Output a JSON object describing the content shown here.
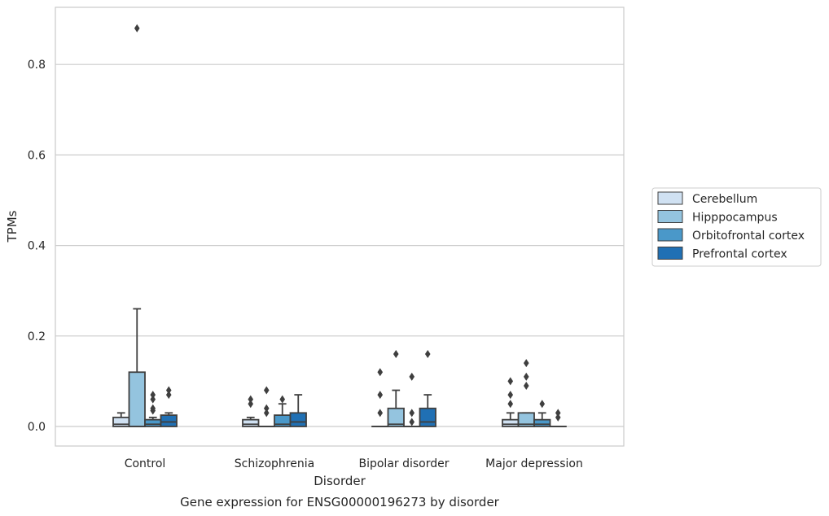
{
  "chart_data": {
    "type": "boxplot",
    "title": "",
    "caption": "Gene expression for ENSG00000196273 by disorder",
    "xlabel": "Disorder",
    "ylabel": "TPMs",
    "ylim": [
      -0.042,
      0.93
    ],
    "yticks": [
      0.0,
      0.2,
      0.4,
      0.6,
      0.8
    ],
    "ytick_labels": [
      "0.0",
      "0.2",
      "0.4",
      "0.6",
      "0.8"
    ],
    "categories": [
      "Control",
      "Schizophrenia",
      "Bipolar disorder",
      "Major depression"
    ],
    "grid": "horizontal",
    "legend_position": "right",
    "series": [
      {
        "name": "Cerebellum",
        "color": "#d0e1f2",
        "boxes": [
          {
            "q1": 0.0,
            "median": 0.005,
            "q3": 0.02,
            "whislo": 0.0,
            "whishi": 0.03,
            "fliers": []
          },
          {
            "q1": 0.0,
            "median": 0.005,
            "q3": 0.015,
            "whislo": 0.0,
            "whishi": 0.02,
            "fliers": [
              0.05,
              0.06
            ]
          },
          {
            "q1": 0.0,
            "median": 0.0,
            "q3": 0.0,
            "whislo": 0.0,
            "whishi": 0.0,
            "fliers": [
              0.03,
              0.07,
              0.12
            ]
          },
          {
            "q1": 0.0,
            "median": 0.005,
            "q3": 0.015,
            "whislo": 0.0,
            "whishi": 0.03,
            "fliers": [
              0.05,
              0.07,
              0.1
            ]
          }
        ]
      },
      {
        "name": "Hipppocampus",
        "color": "#94c4df",
        "boxes": [
          {
            "q1": 0.0,
            "median": 0.0,
            "q3": 0.12,
            "whislo": 0.0,
            "whishi": 0.26,
            "fliers": [
              0.88
            ]
          },
          {
            "q1": 0.0,
            "median": 0.0,
            "q3": 0.0,
            "whislo": 0.0,
            "whishi": 0.0,
            "fliers": [
              0.03,
              0.04,
              0.08
            ]
          },
          {
            "q1": 0.0,
            "median": 0.005,
            "q3": 0.04,
            "whislo": 0.0,
            "whishi": 0.08,
            "fliers": [
              0.16
            ]
          },
          {
            "q1": 0.0,
            "median": 0.005,
            "q3": 0.03,
            "whislo": 0.0,
            "whishi": 0.03,
            "fliers": [
              0.09,
              0.11,
              0.14
            ]
          }
        ]
      },
      {
        "name": "Orbitofrontal cortex",
        "color": "#4a98c9",
        "boxes": [
          {
            "q1": 0.0,
            "median": 0.005,
            "q3": 0.015,
            "whislo": 0.0,
            "whishi": 0.02,
            "fliers": [
              0.035,
              0.04,
              0.06,
              0.07
            ]
          },
          {
            "q1": 0.0,
            "median": 0.005,
            "q3": 0.025,
            "whislo": 0.0,
            "whishi": 0.05,
            "fliers": [
              0.06
            ]
          },
          {
            "q1": 0.0,
            "median": 0.0,
            "q3": 0.0,
            "whislo": 0.0,
            "whishi": 0.0,
            "fliers": [
              0.01,
              0.03,
              0.11
            ]
          },
          {
            "q1": 0.0,
            "median": 0.005,
            "q3": 0.015,
            "whislo": 0.0,
            "whishi": 0.03,
            "fliers": [
              0.05
            ]
          }
        ]
      },
      {
        "name": "Prefrontal cortex",
        "color": "#2070b4",
        "boxes": [
          {
            "q1": 0.0,
            "median": 0.01,
            "q3": 0.025,
            "whislo": 0.0,
            "whishi": 0.03,
            "fliers": [
              0.07,
              0.08
            ]
          },
          {
            "q1": 0.0,
            "median": 0.01,
            "q3": 0.03,
            "whislo": 0.0,
            "whishi": 0.07,
            "fliers": []
          },
          {
            "q1": 0.0,
            "median": 0.01,
            "q3": 0.04,
            "whislo": 0.0,
            "whishi": 0.07,
            "fliers": [
              0.16
            ]
          },
          {
            "q1": 0.0,
            "median": 0.0,
            "q3": 0.0,
            "whislo": 0.0,
            "whishi": 0.0,
            "fliers": [
              0.02,
              0.03
            ]
          }
        ]
      }
    ]
  }
}
